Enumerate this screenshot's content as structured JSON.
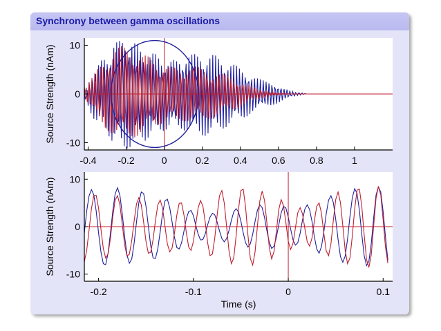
{
  "frame": {
    "title": "Synchrony between gamma oscillations"
  },
  "colors": {
    "frame_bg": "#e4e4f9",
    "title_bar": "#c0c0f2",
    "title_text": "#1a1aa8",
    "series_blue": "#1f1f9c",
    "series_red": "#bf1e2e",
    "ellipse": "#1f1f9c"
  },
  "chart_data": [
    {
      "type": "line",
      "title": "",
      "xlabel": "",
      "ylabel": "Source Strength (nAm)",
      "xlim": [
        -0.42,
        1.2
      ],
      "ylim": [
        -11.5,
        11.5
      ],
      "xticks": [
        -0.4,
        -0.2,
        0,
        0.2,
        0.4,
        0.6,
        0.8,
        1
      ],
      "xtick_labels": [
        "-0.4",
        "-0.2",
        "0",
        "0.2",
        "0.4",
        "0.6",
        "0.8",
        "1"
      ],
      "yticks": [
        -10,
        0,
        10
      ],
      "ytick_labels": [
        "-10",
        "0",
        "10"
      ],
      "reference_lines": {
        "x": 0,
        "y": 0
      },
      "annotation": {
        "shape": "ellipse",
        "center": [
          -0.05,
          0
        ],
        "x_radius": 0.23,
        "y_radius": 11
      },
      "sampling": {
        "x_start": -0.42,
        "x_end": 1.18,
        "step": 0.005
      },
      "series": [
        {
          "name": "blue source",
          "color": "#1f1f9c",
          "values": [
            1.5,
            -1.1,
            -0.5,
            0.8,
            -2.4,
            2.4,
            0.6,
            -4.0,
            2.9,
            2.2,
            -5.1,
            2.0,
            4.1,
            -5.4,
            0.2,
            5.9,
            -4.5,
            -2.1,
            6.9,
            -2.7,
            -4.7,
            7.0,
            -0.2,
            -7.1,
            6.1,
            2.9,
            -8.7,
            4.4,
            6.0,
            -9.6,
            1.6,
            9.5,
            -8.2,
            -1.6,
            10.6,
            -6.1,
            -5.5,
            10.9,
            -3.0,
            -9.1,
            10.5,
            0.9,
            -10.7,
            8.9,
            4.6,
            -11.2,
            6.0,
            7.6,
            -10.9,
            2.5,
            9.7,
            -9.2,
            -1.2,
            10.4,
            -6.4,
            -4.6,
            10.1,
            -2.9,
            -7.3,
            8.7,
            0.6,
            -8.9,
            6.5,
            3.8,
            -9.6,
            3.5,
            6.1,
            -9.0,
            0.5,
            7.5,
            -7.6,
            -2.4,
            8.3,
            -5.4,
            -4.7,
            8.2,
            -2.7,
            -6.4,
            7.3,
            0.1,
            -7.3,
            5.8,
            2.5,
            -7.6,
            3.6,
            4.4,
            -7.3,
            1.2,
            5.8,
            -6.4,
            -1.2,
            6.6,
            -4.8,
            -3.4,
            7.0,
            -2.9,
            -5.1,
            6.7,
            -0.5,
            -6.4,
            6.1,
            2.0,
            -7.1,
            4.9,
            4.3,
            -7.5,
            3.2,
            6.2,
            -7.3,
            0.9,
            7.5,
            -6.6,
            -1.6,
            8.1,
            -5.4,
            -4.0,
            8.2,
            -3.5,
            -6.1,
            7.7,
            -1.1,
            -7.6,
            6.7,
            1.5,
            -8.5,
            5.1,
            3.9,
            -8.6,
            2.9,
            5.9,
            -8.1,
            0.4,
            7.3,
            -6.9,
            -2.1,
            8.0,
            -5.1,
            -4.3,
            7.9,
            -2.8,
            -5.9,
            7.2,
            -0.4,
            -6.8,
            5.9,
            1.8,
            -7.1,
            4.3,
            3.6,
            -6.8,
            2.4,
            4.9,
            -6.0,
            0.4,
            5.7,
            -4.9,
            -1.4,
            6.0,
            -3.5,
            -2.9,
            5.8,
            -1.9,
            -4.0,
            5.2,
            -0.4,
            -4.6,
            4.4,
            0.9,
            -4.8,
            3.4,
            1.9,
            -4.6,
            2.2,
            2.6,
            -4.1,
            1.2,
            3.0,
            -3.5,
            0.2,
            3.2,
            -2.8,
            -0.6,
            3.2,
            -2.1,
            -1.2,
            3.0,
            -1.4,
            -1.7,
            2.8,
            -0.8,
            -2.0,
            2.5,
            -0.3,
            -2.2,
            2.2,
            0.2,
            -2.3,
            1.8,
            0.5,
            -2.2,
            1.4,
            0.8,
            -2.0,
            0.9,
            1.0,
            -1.7,
            0.6,
            1.1,
            -1.3,
            0.2,
            1.0,
            -0.9,
            -0.1,
            0.9,
            -0.6,
            -0.3,
            0.7,
            -0.3,
            -0.4,
            0.5,
            -0.1,
            -0.4,
            0.3,
            0.1,
            -0.3,
            0.2,
            0.2,
            -0.2,
            0.1,
            0.2,
            -0.1,
            0.0,
            0.1,
            0.0,
            0.0,
            0.0,
            0.0,
            0.0,
            0.0,
            0.0,
            0.0,
            0.0,
            0.0,
            0.0,
            0.0,
            0.0,
            0.0,
            0.0,
            0.0,
            0.0,
            0.0,
            0.0,
            0.0,
            0.0,
            0.0,
            0.0,
            0.0,
            0.0,
            0.0,
            0.0,
            0.0,
            0.0,
            0.0,
            0.0,
            0.0,
            0.0,
            0.0,
            0.0,
            0.0,
            0.0,
            0.0,
            0.0,
            0.0,
            0.0,
            0.0,
            0.0,
            0.0,
            0.0,
            0.0,
            0.0,
            0.0,
            0.0,
            0.0,
            0.0,
            0.0,
            0.0,
            0.0,
            0.0,
            0.0,
            0.0,
            0.0,
            0.0,
            0.0,
            0.0,
            0.0,
            0.0,
            0.0,
            0.0,
            0.0,
            0.0,
            0.0,
            0.0,
            0.0,
            0.0,
            0.0,
            0.0,
            0.0,
            0.0,
            0.0,
            0.0,
            0.0,
            0.0,
            0.0,
            0.0,
            0.0,
            0.0,
            0.0,
            0.0,
            0.0,
            0.0,
            0.0,
            0.0,
            0.0,
            0.0,
            0.0,
            0.0,
            0.0,
            0.0,
            0.0,
            0.0,
            0.0,
            0.0,
            0.0,
            0.0,
            0.0,
            0.0,
            0.0,
            0.0,
            0.0,
            0.0,
            0.0,
            0.0,
            0.0,
            0.0,
            0.0,
            0.0,
            0.0,
            0.0,
            0.0,
            0.0,
            0.0,
            0.0
          ]
        },
        {
          "name": "red source",
          "color": "#bf1e2e",
          "values": [
            -1.2,
            0.4,
            1.3,
            -1.6,
            -0.3,
            2.3,
            -2.1,
            -1.1,
            3.3,
            -2.3,
            -2.1,
            4.3,
            -2.0,
            -3.3,
            5.1,
            -1.2,
            -4.6,
            5.6,
            0.1,
            -5.8,
            5.5,
            1.7,
            -6.9,
            5.0,
            3.5,
            -7.6,
            3.8,
            5.4,
            -8.0,
            2.1,
            7.2,
            -8.0,
            0.1,
            8.6,
            -7.4,
            -2.0,
            9.5,
            -6.3,
            -4.1,
            9.8,
            -4.6,
            -5.8,
            9.5,
            -2.5,
            -7.1,
            8.6,
            -0.3,
            -8.1,
            7.5,
            2.0,
            -8.7,
            6.0,
            4.0,
            -8.9,
            4.2,
            5.7,
            -8.6,
            2.4,
            6.9,
            -7.8,
            0.5,
            7.6,
            -6.6,
            -1.4,
            7.9,
            -5.1,
            -3.1,
            7.7,
            -3.4,
            -4.5,
            7.0,
            -1.5,
            -5.6,
            6.1,
            0.3,
            -6.2,
            4.9,
            1.9,
            -6.3,
            3.5,
            3.3,
            -6.1,
            1.9,
            4.4,
            -5.6,
            0.4,
            5.1,
            -4.8,
            -1.1,
            5.5,
            -3.7,
            -2.4,
            5.6,
            -2.4,
            -3.6,
            5.4,
            -1.0,
            -4.5,
            4.9,
            0.5,
            -5.1,
            4.2,
            1.8,
            -5.5,
            3.2,
            3.0,
            -5.6,
            2.0,
            4.0,
            -5.5,
            0.7,
            4.8,
            -5.0,
            -0.6,
            5.4,
            -4.3,
            -1.8,
            5.6,
            -3.4,
            -2.9,
            5.5,
            -2.3,
            -3.8,
            5.1,
            -1.1,
            -4.5,
            4.5,
            0.1,
            -4.9,
            3.7,
            1.2,
            -5.1,
            2.8,
            2.2,
            -5.0,
            1.8,
            3.0,
            -4.7,
            0.8,
            3.6,
            -4.1,
            -0.2,
            4.0,
            -3.3,
            -1.1,
            4.1,
            -2.4,
            -1.9,
            4.0,
            -1.5,
            -2.5,
            3.7,
            -0.6,
            -2.9,
            3.2,
            0.2,
            -3.1,
            2.6,
            0.8,
            -3.1,
            1.9,
            1.3,
            -2.9,
            1.2,
            1.7,
            -2.5,
            0.5,
            1.9,
            -2.0,
            -0.1,
            1.9,
            -1.5,
            -0.5,
            1.8,
            -1.0,
            -0.8,
            1.6,
            -0.5,
            -1.0,
            1.3,
            -0.1,
            -1.0,
            1.0,
            0.2,
            -1.0,
            0.7,
            0.4,
            -0.9,
            0.4,
            0.5,
            -0.7,
            0.2,
            0.5,
            -0.5,
            0.0,
            0.5,
            -0.3,
            -0.1,
            0.4,
            -0.2,
            -0.2,
            0.3,
            -0.1,
            -0.2,
            0.2,
            0.0,
            -0.2,
            0.1,
            0.1,
            -0.1,
            0.1,
            0.1,
            -0.1,
            0.0,
            0.1,
            0.0,
            0.0,
            0.0,
            0.0,
            0.0,
            0.0,
            0.0,
            0.0,
            0.0,
            0.0,
            0.0,
            0.0,
            0.0,
            0.0,
            0.0,
            0.0,
            0.0,
            0.0,
            0.0,
            0.0,
            0.0,
            0.0,
            0.0,
            0.0,
            0.0,
            0.0,
            0.0,
            0.0,
            0.0,
            0.0,
            0.0,
            0.0,
            0.0,
            0.0,
            0.0,
            0.0,
            0.0,
            0.0,
            0.0,
            0.0,
            0.0,
            0.0,
            0.0,
            0.0,
            0.0,
            0.0,
            0.0,
            0.0,
            0.0,
            0.0,
            0.0,
            0.0,
            0.0,
            0.0,
            0.0,
            0.0,
            0.0,
            0.0,
            0.0,
            0.0,
            0.0,
            0.0,
            0.0,
            0.0,
            0.0,
            0.0,
            0.0,
            0.0,
            0.0,
            0.0,
            0.0,
            0.0,
            0.0,
            0.0,
            0.0,
            0.0,
            0.0,
            0.0,
            0.0,
            0.0,
            0.0,
            0.0,
            0.0,
            0.0,
            0.0,
            0.0,
            0.0,
            0.0,
            0.0,
            0.0,
            0.0,
            0.0,
            0.0,
            0.0,
            0.0,
            0.0,
            0.0,
            0.0,
            0.0,
            0.0,
            0.0,
            0.0,
            0.0,
            0.0,
            0.0,
            0.0,
            0.0,
            0.0,
            0.0,
            0.0,
            0.0,
            0.0,
            0.0,
            0.0,
            0.0,
            0.0,
            0.0,
            0.0,
            0.0,
            0.0,
            0.0,
            0.0,
            0.0,
            0.0,
            0.0,
            0.0,
            0.0,
            0.0,
            0.0,
            0.0,
            0.0,
            0.0,
            0.0
          ]
        }
      ]
    },
    {
      "type": "line",
      "title": "",
      "xlabel": "Time (s)",
      "ylabel": "Source Strength (nAm)",
      "xlim": [
        -0.215,
        0.11
      ],
      "ylim": [
        -11.5,
        11.5
      ],
      "xticks": [
        -0.2,
        -0.1,
        0,
        0.1
      ],
      "xtick_labels": [
        "-0.2",
        "-0.1",
        "0",
        "0.1"
      ],
      "yticks": [
        -10,
        0,
        10
      ],
      "ytick_labels": [
        "-10",
        "0",
        "10"
      ],
      "reference_lines": {
        "x": 0,
        "y": 0
      },
      "sampling": {
        "x_start": -0.215,
        "x_end": 0.11,
        "step": 0.0025
      },
      "series": [
        {
          "name": "blue source",
          "color": "#1f1f9c",
          "values": [
            -1.3,
            3.3,
            6.5,
            7.8,
            6.7,
            3.3,
            -1.3,
            -5.3,
            -7.8,
            -8.0,
            -5.6,
            -1.4,
            3.3,
            6.9,
            8.2,
            6.6,
            2.7,
            -2.1,
            -6.0,
            -7.7,
            -6.8,
            -3.5,
            1.0,
            5.1,
            7.3,
            7.0,
            4.3,
            0.1,
            -4.1,
            -6.6,
            -6.7,
            -4.6,
            -1.0,
            2.8,
            5.4,
            5.8,
            4.0,
            1.0,
            -2.2,
            -4.4,
            -4.7,
            -3.4,
            -1.0,
            1.6,
            3.2,
            3.4,
            2.3,
            0.3,
            -1.6,
            -2.8,
            -2.7,
            -1.5,
            0.4,
            2.0,
            2.8,
            2.5,
            1.0,
            -0.9,
            -2.5,
            -3.2,
            -2.5,
            -0.8,
            1.3,
            3.1,
            3.8,
            3.1,
            1.2,
            -1.3,
            -3.4,
            -4.3,
            -3.6,
            -1.6,
            1.1,
            3.5,
            4.6,
            4.0,
            1.9,
            -0.9,
            -3.3,
            -4.6,
            -4.1,
            -2.2,
            0.4,
            2.9,
            4.3,
            3.9,
            2.0,
            -0.5,
            -2.8,
            -3.9,
            -3.4,
            -1.4,
            1.4,
            3.7,
            4.6,
            3.6,
            1.1,
            -2.1,
            -4.7,
            -5.6,
            -4.2,
            -1.1,
            2.7,
            5.6,
            6.5,
            5.1,
            1.6,
            -2.7,
            -6.3,
            -7.5,
            -6.2,
            -2.6,
            2.1,
            6.1,
            8.0,
            7.0,
            3.4,
            -1.6,
            -6.1,
            -8.2,
            -7.3,
            -3.5,
            1.8,
            6.6,
            8.4,
            7.3,
            3.2,
            -2.2,
            -7.1
          ]
        },
        {
          "name": "red source",
          "color": "#bf1e2e",
          "values": [
            -7.4,
            -5.0,
            -0.7,
            3.8,
            6.6,
            6.6,
            3.9,
            -0.5,
            -4.6,
            -6.6,
            -5.8,
            -2.5,
            2.1,
            5.6,
            6.5,
            4.6,
            0.5,
            -3.8,
            -6.2,
            -5.8,
            -2.9,
            1.2,
            4.8,
            6.1,
            4.6,
            1.0,
            -3.1,
            -5.6,
            -5.4,
            -2.7,
            1.3,
            4.6,
            5.6,
            3.9,
            0.1,
            -3.6,
            -5.3,
            -4.5,
            -1.4,
            2.4,
            4.9,
            5.0,
            2.5,
            -1.2,
            -4.3,
            -5.0,
            -3.1,
            0.5,
            4.0,
            5.5,
            4.3,
            0.9,
            -3.4,
            -6.1,
            -5.8,
            -2.4,
            2.4,
            6.5,
            7.6,
            5.0,
            -0.0,
            -5.1,
            -7.8,
            -6.6,
            -2.0,
            3.6,
            7.6,
            7.9,
            4.1,
            -1.8,
            -6.7,
            -8.1,
            -5.3,
            0.2,
            5.4,
            7.5,
            5.5,
            0.7,
            -4.4,
            -6.8,
            -5.2,
            -0.9,
            3.6,
            5.7,
            4.4,
            0.8,
            -3.1,
            -4.8,
            -3.5,
            -0.3,
            2.9,
            4.0,
            2.7,
            -0.4,
            -3.2,
            -4.1,
            -2.4,
            1.2,
            4.3,
            5.0,
            2.8,
            -1.4,
            -5.1,
            -6.1,
            -3.6,
            1.3,
            5.7,
            7.3,
            5.1,
            0.2,
            -5.0,
            -7.8,
            -6.6,
            -2.0,
            3.7,
            7.7,
            7.9,
            4.3,
            -1.7,
            -6.9,
            -8.6,
            -5.9,
            0.1,
            5.9,
            8.5,
            6.7,
            1.4,
            -4.4,
            -7.7
          ]
        }
      ]
    }
  ]
}
